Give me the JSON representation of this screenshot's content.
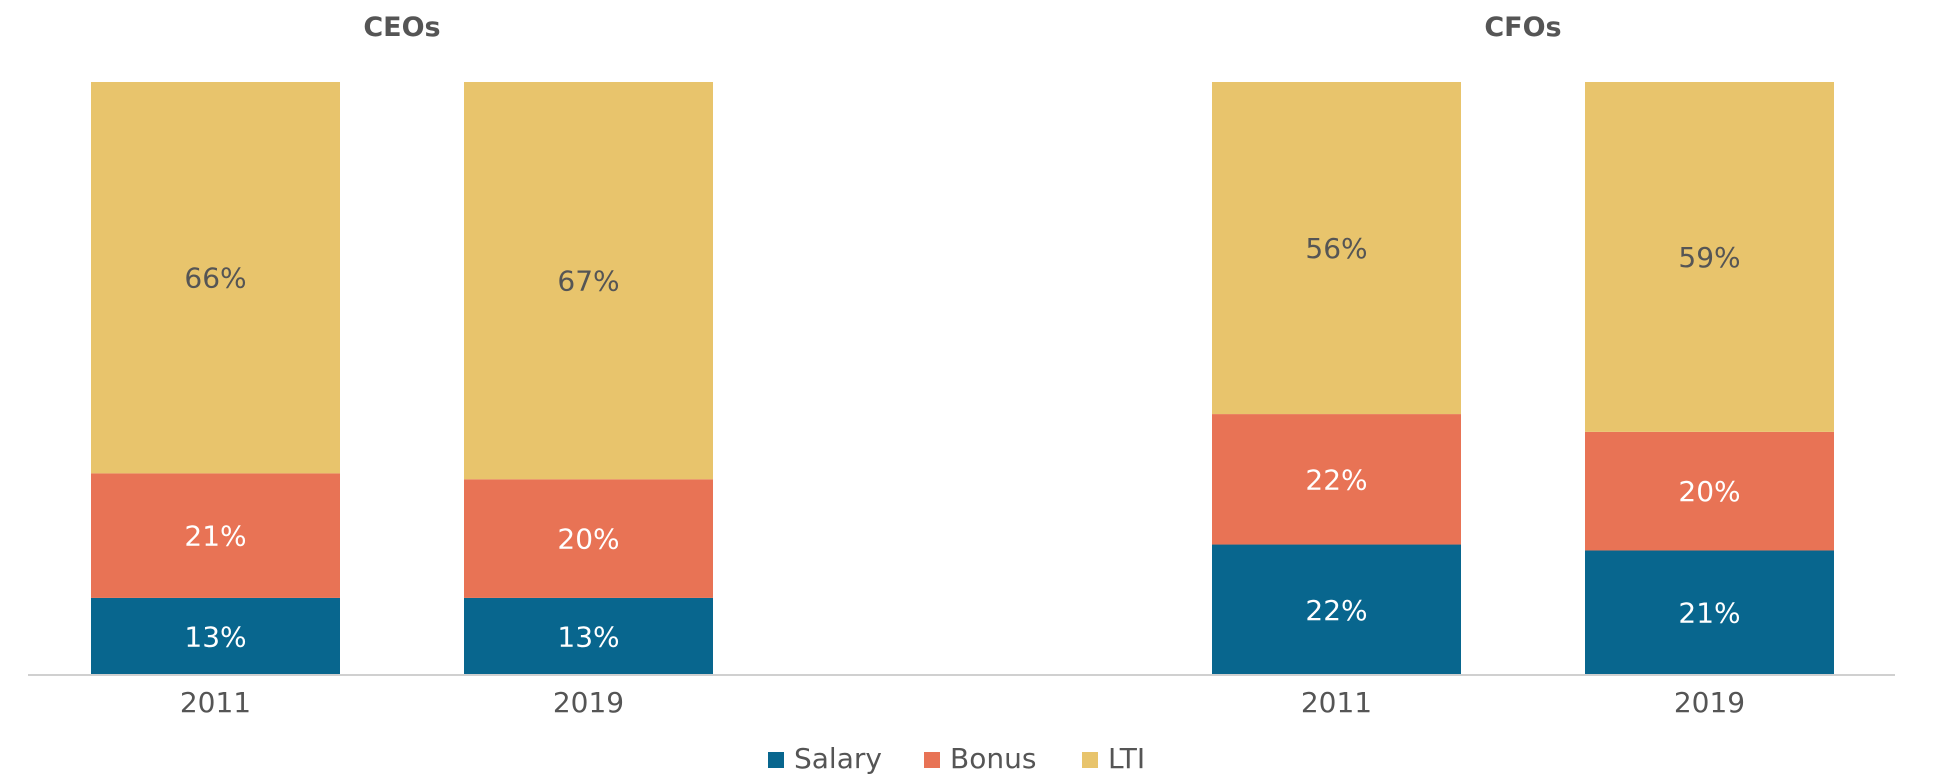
{
  "chart_data": {
    "type": "bar",
    "stacked": true,
    "unit": "%",
    "groups": [
      {
        "title": "CEOs",
        "categories": [
          "2011",
          "2019"
        ],
        "series": [
          {
            "name": "Salary",
            "values": [
              13,
              13
            ]
          },
          {
            "name": "Bonus",
            "values": [
              21,
              20
            ]
          },
          {
            "name": "LTI",
            "values": [
              66,
              67
            ]
          }
        ]
      },
      {
        "title": "CFOs",
        "categories": [
          "2011",
          "2019"
        ],
        "series": [
          {
            "name": "Salary",
            "values": [
              22,
              21
            ]
          },
          {
            "name": "Bonus",
            "values": [
              22,
              20
            ]
          },
          {
            "name": "LTI",
            "values": [
              56,
              59
            ]
          }
        ]
      }
    ],
    "legend": {
      "position": "bottom",
      "items": [
        {
          "name": "Salary",
          "color": "#08668e"
        },
        {
          "name": "Bonus",
          "color": "#e87355"
        },
        {
          "name": "LTI",
          "color": "#e8c46c"
        }
      ]
    },
    "label_colors": {
      "Salary": "#ffffff",
      "Bonus": "#ffffff",
      "LTI": "#555555"
    },
    "ylim": [
      0,
      100
    ],
    "grid": false
  }
}
